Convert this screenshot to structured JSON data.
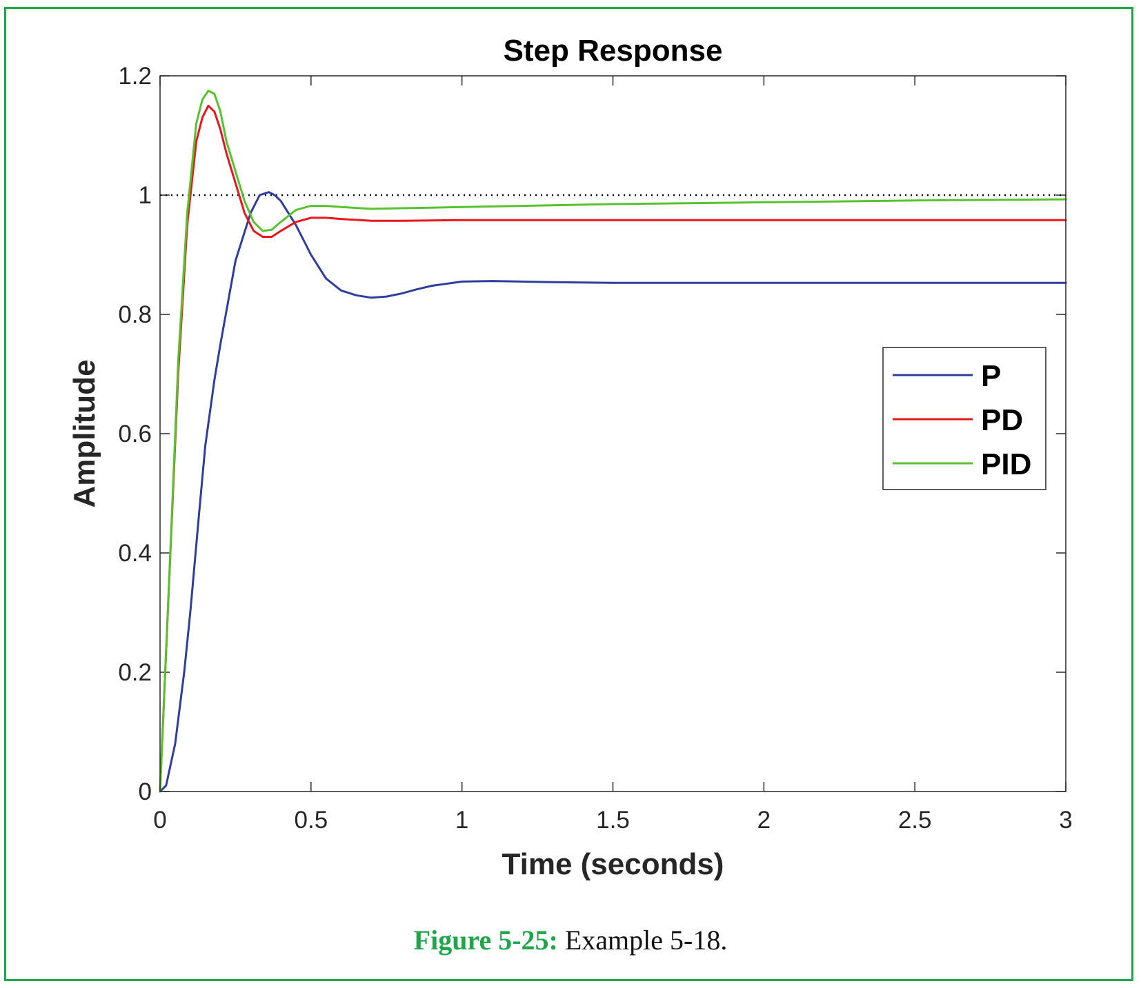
{
  "caption": {
    "label": "Figure 5-25:",
    "text": "Example 5-18."
  },
  "chart_data": {
    "type": "line",
    "title": "Step Response",
    "xlabel": "Time (seconds)",
    "ylabel": "Amplitude",
    "xlim": [
      0,
      3
    ],
    "ylim": [
      0,
      1.2
    ],
    "xticks": [
      "0",
      "0.5",
      "1",
      "1.5",
      "2",
      "2.5",
      "3"
    ],
    "yticks": [
      "0",
      "0.2",
      "0.4",
      "0.6",
      "0.8",
      "1",
      "1.2"
    ],
    "reference_line": {
      "y": 1,
      "style": "dotted",
      "color": "#000000"
    },
    "legend_position": "right",
    "series": [
      {
        "name": "P",
        "color": "#2e3d9f",
        "x": [
          0,
          0.02,
          0.05,
          0.08,
          0.1,
          0.13,
          0.15,
          0.18,
          0.2,
          0.25,
          0.3,
          0.33,
          0.36,
          0.38,
          0.4,
          0.45,
          0.5,
          0.55,
          0.6,
          0.65,
          0.7,
          0.75,
          0.8,
          0.85,
          0.9,
          1.0,
          1.1,
          1.2,
          1.3,
          1.5,
          1.8,
          2.0,
          2.5,
          3.0
        ],
        "y": [
          0,
          0.01,
          0.08,
          0.2,
          0.3,
          0.47,
          0.58,
          0.69,
          0.75,
          0.89,
          0.97,
          1.0,
          1.005,
          1.0,
          0.99,
          0.95,
          0.9,
          0.86,
          0.84,
          0.832,
          0.828,
          0.83,
          0.835,
          0.842,
          0.848,
          0.855,
          0.856,
          0.855,
          0.854,
          0.853,
          0.853,
          0.853,
          0.853,
          0.853
        ]
      },
      {
        "name": "PD",
        "color": "#e8161d",
        "x": [
          0,
          0.03,
          0.06,
          0.09,
          0.12,
          0.14,
          0.16,
          0.18,
          0.2,
          0.22,
          0.25,
          0.28,
          0.31,
          0.34,
          0.37,
          0.4,
          0.45,
          0.5,
          0.55,
          0.6,
          0.7,
          0.8,
          1.0,
          1.5,
          2.0,
          2.5,
          3.0
        ],
        "y": [
          0,
          0.35,
          0.7,
          0.95,
          1.09,
          1.13,
          1.15,
          1.14,
          1.11,
          1.07,
          1.02,
          0.97,
          0.94,
          0.93,
          0.93,
          0.94,
          0.955,
          0.962,
          0.962,
          0.96,
          0.957,
          0.957,
          0.958,
          0.958,
          0.958,
          0.958,
          0.958
        ]
      },
      {
        "name": "PID",
        "color": "#58c22e",
        "x": [
          0,
          0.03,
          0.06,
          0.09,
          0.12,
          0.14,
          0.16,
          0.18,
          0.2,
          0.22,
          0.25,
          0.28,
          0.31,
          0.34,
          0.37,
          0.4,
          0.45,
          0.5,
          0.55,
          0.6,
          0.7,
          0.8,
          1.0,
          1.5,
          2.0,
          2.5,
          3.0
        ],
        "y": [
          0,
          0.35,
          0.72,
          0.97,
          1.12,
          1.16,
          1.175,
          1.17,
          1.14,
          1.09,
          1.04,
          0.99,
          0.955,
          0.94,
          0.942,
          0.955,
          0.975,
          0.982,
          0.982,
          0.98,
          0.977,
          0.978,
          0.98,
          0.985,
          0.988,
          0.991,
          0.993
        ]
      }
    ]
  }
}
